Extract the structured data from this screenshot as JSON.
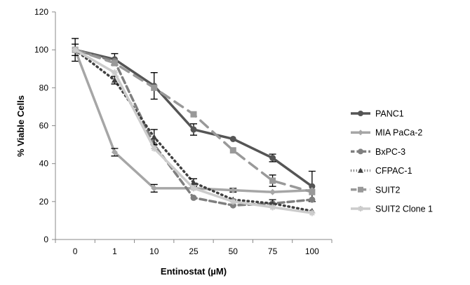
{
  "chart_data": {
    "type": "line",
    "title": "",
    "xlabel": "Entinostat (µM)",
    "ylabel": "% Viable Cells",
    "categories": [
      "0",
      "1",
      "10",
      "25",
      "50",
      "75",
      "100"
    ],
    "ylim": [
      0,
      120
    ],
    "yticks": [
      0,
      20,
      40,
      60,
      80,
      100,
      120
    ],
    "grid": false,
    "legend_position": "right",
    "series": [
      {
        "name": "PANC1",
        "color": "#555555",
        "dash": "",
        "marker": "circle",
        "values": [
          100,
          95,
          81,
          58,
          53,
          43,
          28
        ],
        "errors": [
          6,
          3,
          7,
          3,
          0,
          2,
          8
        ]
      },
      {
        "name": "MIA PaCa-2",
        "color": "#a6a6a6",
        "dash": "",
        "marker": "diamond",
        "values": [
          100,
          46,
          27,
          27,
          26,
          25,
          26
        ],
        "errors": [
          0,
          2,
          2,
          0,
          1,
          0,
          0
        ]
      },
      {
        "name": "BxPC-3",
        "color": "#7f7f7f",
        "dash": "9,5",
        "marker": "circle",
        "values": [
          100,
          94,
          50,
          22,
          18,
          19,
          21
        ],
        "errors": [
          0,
          0,
          0,
          0,
          0,
          0,
          0
        ]
      },
      {
        "name": "CFPAC-1",
        "color": "#404040",
        "dash": "1.5,5",
        "marker": "triangle",
        "values": [
          100,
          84,
          54,
          30,
          21,
          19,
          15
        ],
        "errors": [
          3,
          2,
          4,
          2,
          0,
          2,
          0
        ]
      },
      {
        "name": "SUIT2",
        "color": "#999999",
        "dash": "14,9",
        "marker": "square",
        "values": [
          100,
          93,
          80,
          66,
          47,
          31,
          25
        ],
        "errors": [
          0,
          0,
          0,
          0,
          0,
          3,
          0
        ]
      },
      {
        "name": "SUIT2 Clone 1",
        "color": "#cccccc",
        "dash": "",
        "marker": "star",
        "values": [
          100,
          88,
          48,
          27,
          20,
          17,
          14
        ],
        "errors": [
          0,
          0,
          0,
          0,
          0,
          0,
          0
        ]
      }
    ]
  }
}
